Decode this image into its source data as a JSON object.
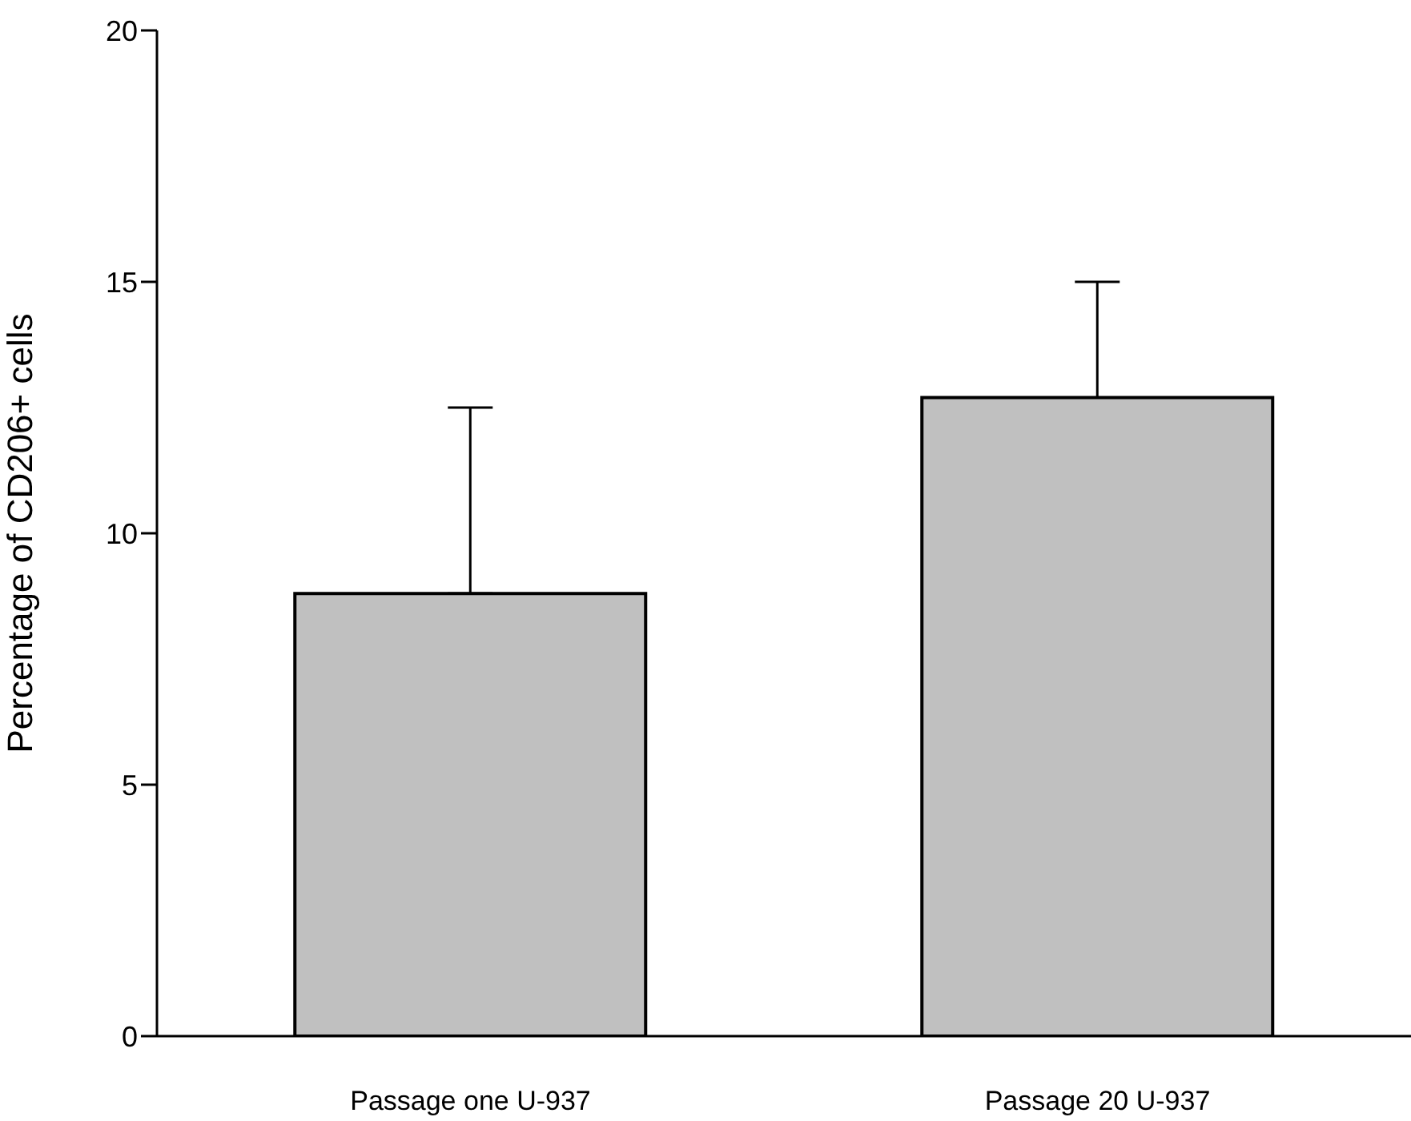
{
  "chart_data": {
    "type": "bar",
    "categories": [
      "Passage one U-937",
      "Passage 20 U-937"
    ],
    "values": [
      8.8,
      12.7
    ],
    "errors": [
      [
        8.8,
        12.5
      ],
      [
        12.7,
        15.0
      ]
    ],
    "color": "#c0c0c0",
    "ylabel": "Percentage of CD206+ cells",
    "ylim": [
      0,
      20
    ],
    "yticks": [
      0,
      5,
      10,
      15,
      20
    ],
    "grid": false,
    "legend": false
  }
}
